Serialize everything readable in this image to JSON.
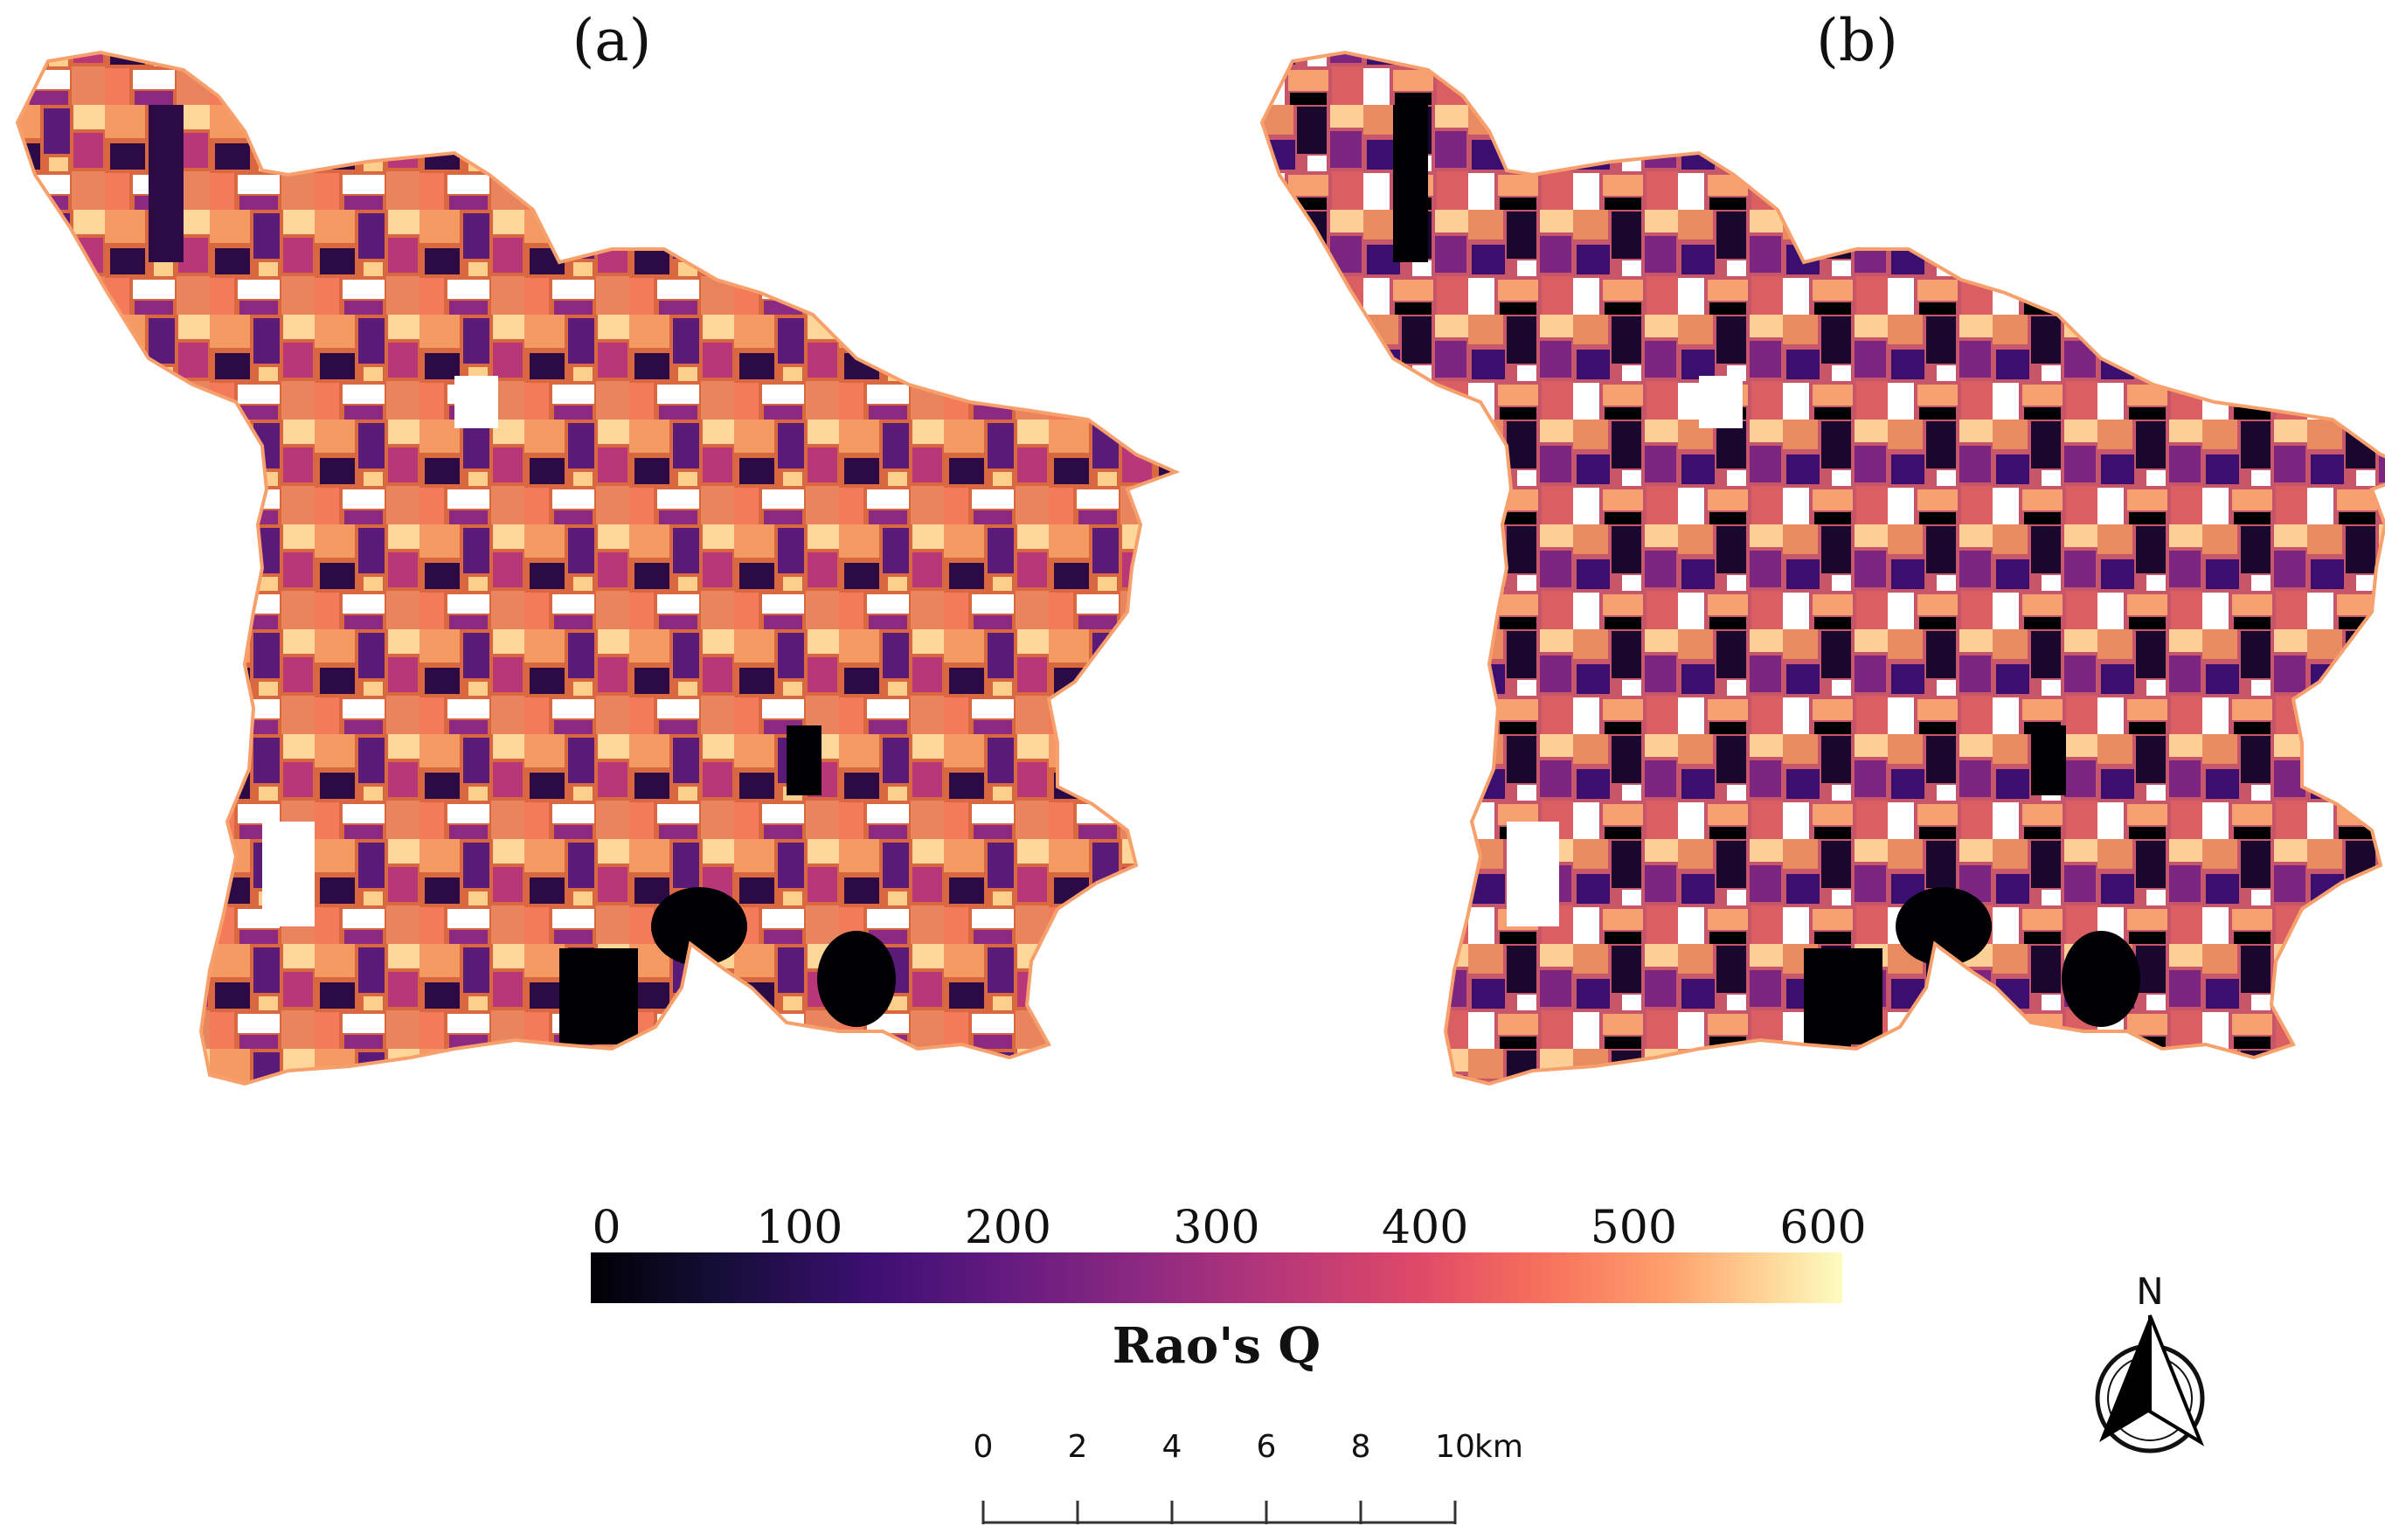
{
  "panels": [
    {
      "label": "(a)"
    },
    {
      "label": "(b)"
    }
  ],
  "legend": {
    "title": "Rao's Q",
    "min": 0,
    "max": 600,
    "ticks": [
      {
        "text": "0",
        "value": 0
      },
      {
        "text": "100",
        "value": 100
      },
      {
        "text": "200",
        "value": 200
      },
      {
        "text": "300",
        "value": 300
      },
      {
        "text": "400",
        "value": 400
      },
      {
        "text": "500",
        "value": 500
      },
      {
        "text": "600",
        "value": 600
      }
    ],
    "colormap": [
      "#000004",
      "#3b0f70",
      "#8c2981",
      "#de4968",
      "#fe9f6d",
      "#fcfdbf"
    ]
  },
  "scale_bar": {
    "ticks": [
      "0",
      "2",
      "4",
      "6",
      "8",
      "10"
    ],
    "unit": "km"
  },
  "north_arrow": {
    "letter": "N"
  }
}
